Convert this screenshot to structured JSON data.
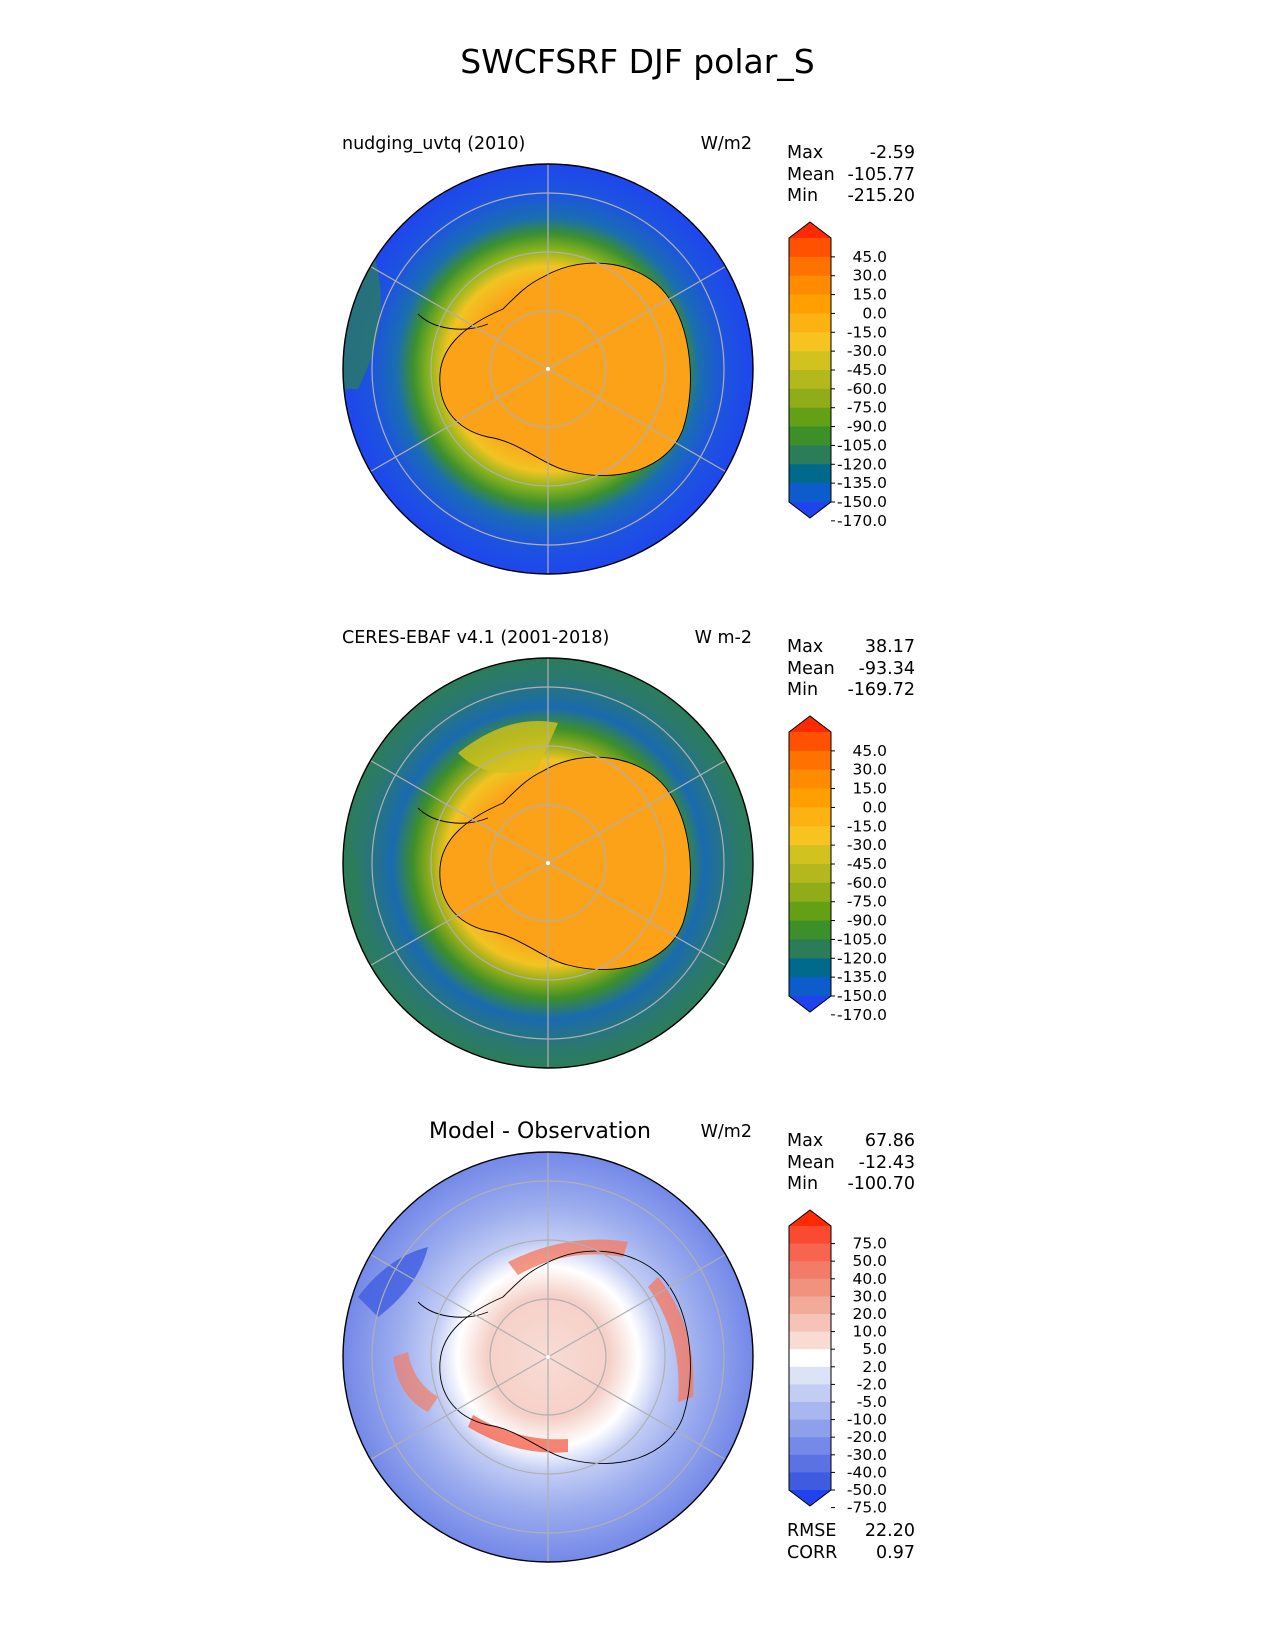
{
  "figure_title": "SWCFSRF DJF polar_S",
  "panels": [
    {
      "title": "nudging_uvtq (2010)",
      "units": "W/m2",
      "stats": [
        {
          "label": "Max",
          "value": "-2.59"
        },
        {
          "label": "Mean",
          "value": "-105.77"
        },
        {
          "label": "Min",
          "value": "-215.20"
        }
      ]
    },
    {
      "title": "CERES-EBAF v4.1 (2001-2018)",
      "units": "W m-2",
      "stats": [
        {
          "label": "Max",
          "value": "38.17"
        },
        {
          "label": "Mean",
          "value": "-93.34"
        },
        {
          "label": "Min",
          "value": "-169.72"
        }
      ]
    },
    {
      "title": "Model - Observation",
      "units": "W/m2",
      "stats": [
        {
          "label": "Max",
          "value": "67.86"
        },
        {
          "label": "Mean",
          "value": "-12.43"
        },
        {
          "label": "Min",
          "value": "-100.70"
        }
      ],
      "metrics": [
        {
          "label": "RMSE",
          "value": "22.20"
        },
        {
          "label": "CORR",
          "value": "0.97"
        }
      ]
    }
  ],
  "chart_data": [
    {
      "type": "heatmap",
      "projection": "south polar stereographic",
      "title": "nudging_uvtq (2010)",
      "units": "W/m2",
      "colorbar": {
        "ticks": [
          "45.0",
          "30.0",
          "15.0",
          "0.0",
          "-15.0",
          "-30.0",
          "-45.0",
          "-60.0",
          "-75.0",
          "-90.0",
          "-105.0",
          "-120.0",
          "-135.0",
          "-150.0",
          "-170.0"
        ],
        "colors": [
          "#ff2a00",
          "#ff5100",
          "#ff7200",
          "#ff8c00",
          "#ffa000",
          "#fdb214",
          "#f6c321",
          "#d2c21f",
          "#b3b81c",
          "#90ad19",
          "#64a015",
          "#3d8f2a",
          "#2b7d5a",
          "#006a8c",
          "#0c5ccc",
          "#1f44ef"
        ],
        "extend": "both"
      },
      "regions": {
        "ocean_outer": "#1f52e0",
        "ocean_mid": "#1a6ab8",
        "sea_ice_zone": "#3d8f2a",
        "antarctica": "#fca218"
      }
    },
    {
      "type": "heatmap",
      "projection": "south polar stereographic",
      "title": "CERES-EBAF v4.1 (2001-2018)",
      "units": "W m-2",
      "colorbar": {
        "ticks": [
          "45.0",
          "30.0",
          "15.0",
          "0.0",
          "-15.0",
          "-30.0",
          "-45.0",
          "-60.0",
          "-75.0",
          "-90.0",
          "-105.0",
          "-120.0",
          "-135.0",
          "-150.0",
          "-170.0"
        ],
        "colors": [
          "#ff2a00",
          "#ff5100",
          "#ff7200",
          "#ff8c00",
          "#ffa000",
          "#fdb214",
          "#f6c321",
          "#d2c21f",
          "#b3b81c",
          "#90ad19",
          "#64a015",
          "#3d8f2a",
          "#2b7d5a",
          "#006a8c",
          "#0c5ccc",
          "#1f44ef"
        ],
        "extend": "both"
      },
      "regions": {
        "ocean_outer": "#1b63a8",
        "ocean_mid": "#2b7d5a",
        "sea_ice_zone": "#64a015",
        "antarctica": "#fca218"
      }
    },
    {
      "type": "heatmap",
      "projection": "south polar stereographic",
      "title": "Model - Observation",
      "units": "W/m2",
      "colorbar": {
        "ticks": [
          "75.0",
          "50.0",
          "40.0",
          "30.0",
          "20.0",
          "10.0",
          "5.0",
          "2.0",
          "-2.0",
          "-5.0",
          "-10.0",
          "-20.0",
          "-30.0",
          "-40.0",
          "-50.0",
          "-75.0"
        ],
        "colors": [
          "#ff2a00",
          "#fa4a32",
          "#f5654f",
          "#f27c67",
          "#f1927f",
          "#f2aa99",
          "#f5c3b7",
          "#f8dcd4",
          "#ffffff",
          "#dde3f7",
          "#c3cdf4",
          "#a9b7f0",
          "#8ea0ec",
          "#7489e8",
          "#5a72e4",
          "#3f5ce0",
          "#1f44ef"
        ],
        "extend": "both"
      },
      "regions": {
        "ocean": "#97a9ee",
        "antarctica": "#f7d6d0"
      }
    }
  ]
}
